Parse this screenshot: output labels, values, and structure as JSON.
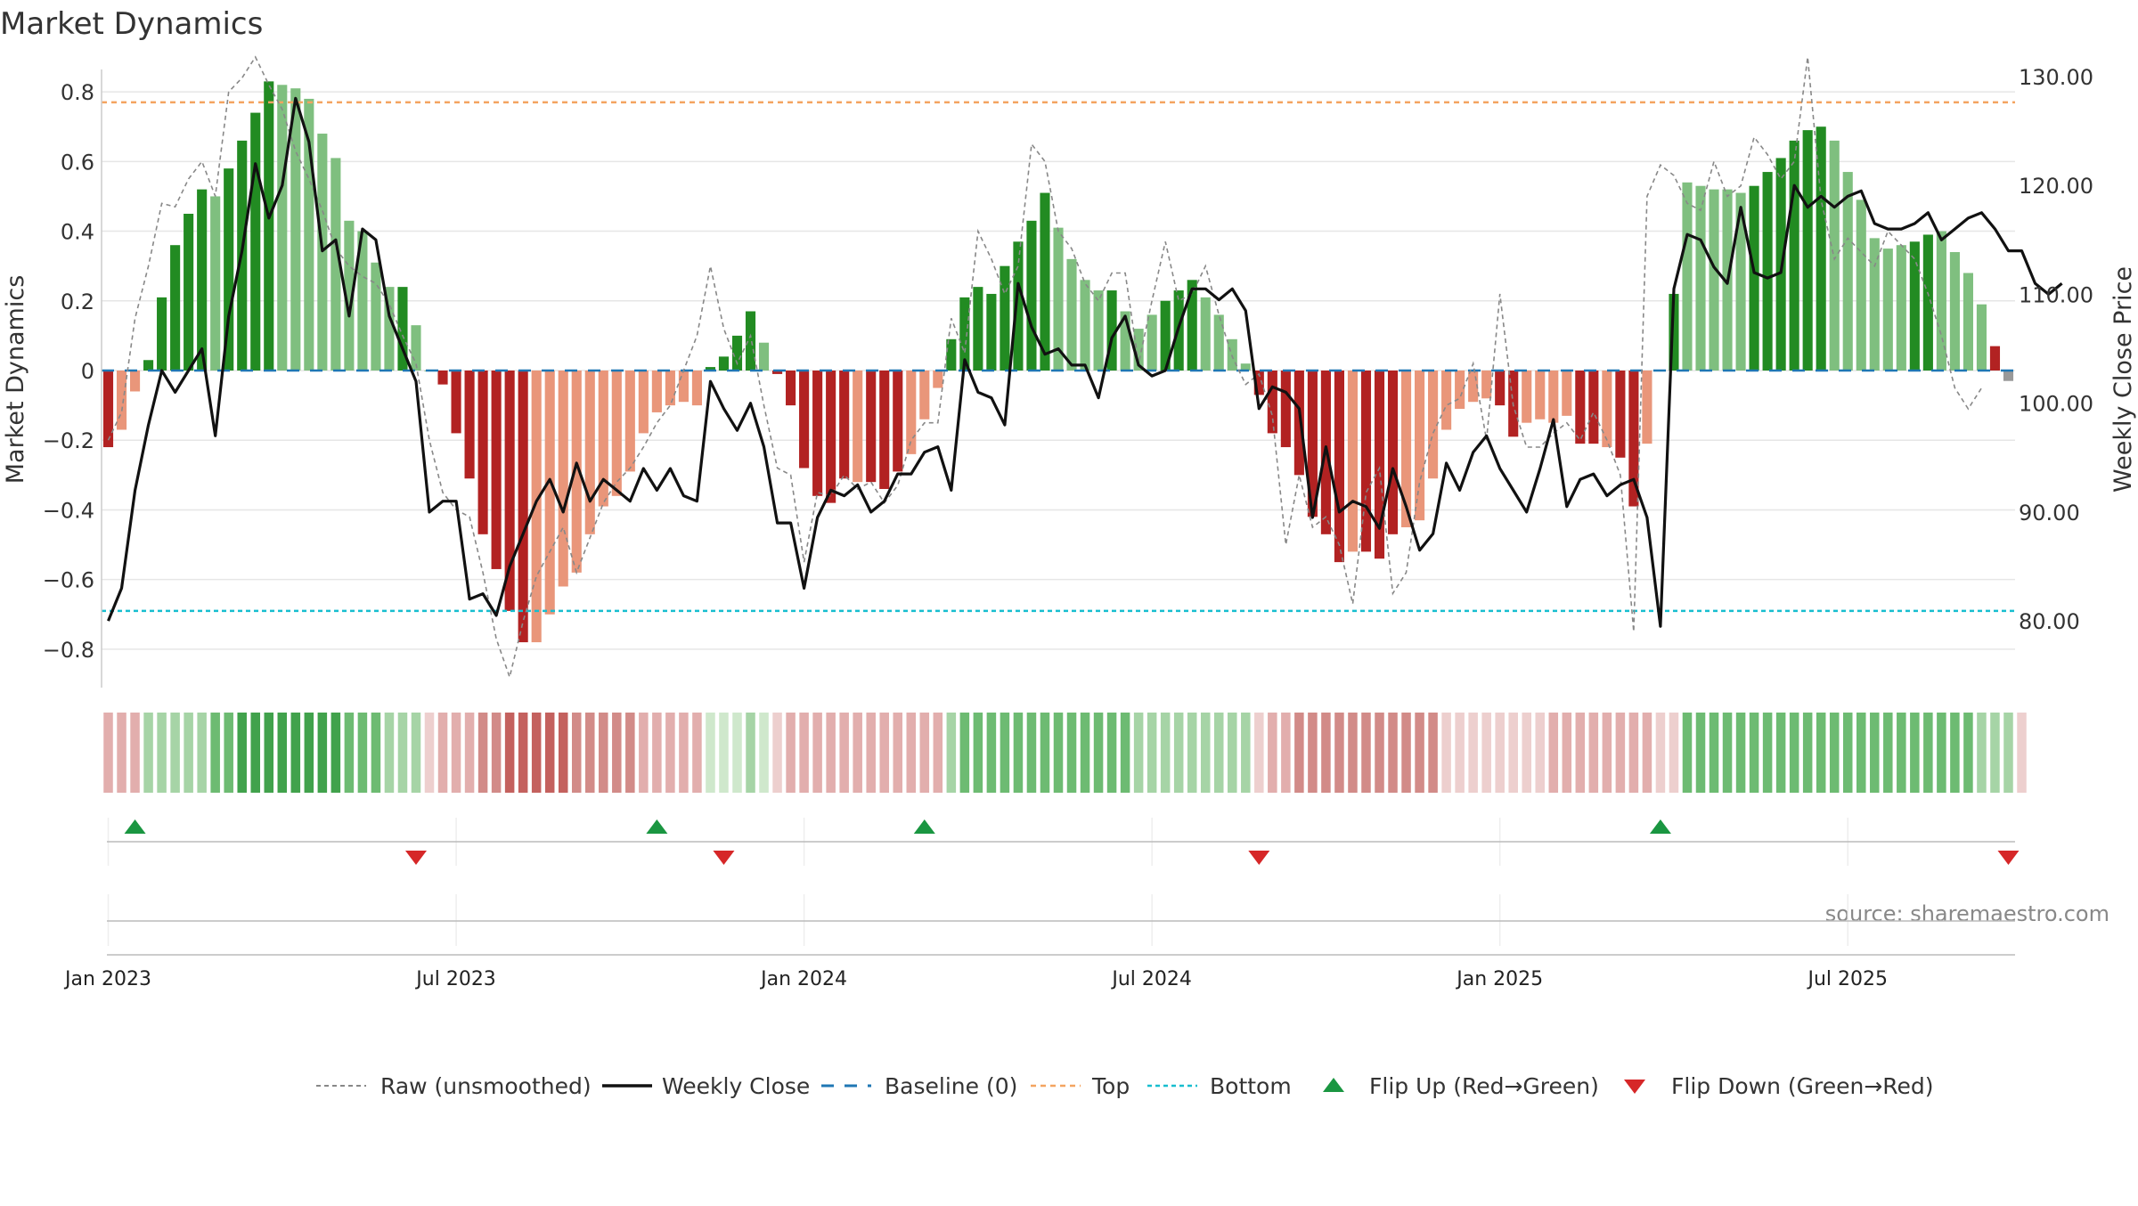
{
  "chart_data": {
    "type": "bar",
    "title": "Market Dynamics",
    "ylabel": "Market Dynamics",
    "y2label": "Weekly Close Price",
    "ylim": [
      -0.9,
      0.9
    ],
    "y2lim": [
      74.2,
      131.8
    ],
    "y_ticks": [
      "0.8",
      "0.6",
      "0.4",
      "0.2",
      "0",
      "−0.2",
      "−0.4",
      "−0.6",
      "−0.8"
    ],
    "y_tick_values": [
      0.8,
      0.6,
      0.4,
      0.2,
      0,
      -0.2,
      -0.4,
      -0.6,
      -0.8
    ],
    "y2_ticks": [
      "130.00",
      "120.00",
      "110.00",
      "100.00",
      "90.00",
      "80.00"
    ],
    "y2_tick_values": [
      130,
      120,
      110,
      100,
      90,
      80
    ],
    "x_ticks": [
      "Jan 2023",
      "Jul 2023",
      "Jan 2024",
      "Jul 2024",
      "Jan 2025",
      "Jul 2025"
    ],
    "x_tick_values": [
      0.5,
      26.5,
      52.5,
      78.5,
      104.5,
      130.5
    ],
    "grid": true,
    "legend_position": "bottom",
    "top_threshold": 0.77,
    "bottom_threshold": -0.69,
    "baseline": 0,
    "colors": {
      "strong_up": "#228B22",
      "weak_up": "#7FBF7F",
      "strong_down": "#B22222",
      "weak_down": "#E9967A",
      "raw": "#888888",
      "close": "#111111",
      "baseline": "#1F77B4",
      "top": "#F4A460",
      "bottom": "#17BECF",
      "flip_up": "#1A9641",
      "flip_down": "#D62728"
    },
    "series": [
      {
        "name": "Market Dynamics",
        "values": [
          -0.22,
          -0.17,
          -0.06,
          0.03,
          0.21,
          0.36,
          0.45,
          0.52,
          0.5,
          0.58,
          0.66,
          0.74,
          0.83,
          0.82,
          0.81,
          0.78,
          0.68,
          0.61,
          0.43,
          0.4,
          0.31,
          0.24,
          0.24,
          0.13,
          0,
          -0.04,
          -0.18,
          -0.31,
          -0.47,
          -0.57,
          -0.69,
          -0.78,
          -0.78,
          -0.7,
          -0.62,
          -0.58,
          -0.47,
          -0.39,
          -0.36,
          -0.29,
          -0.18,
          -0.12,
          -0.1,
          -0.09,
          -0.1,
          0.01,
          0.04,
          0.1,
          0.17,
          0.08,
          -0.01,
          -0.1,
          -0.28,
          -0.36,
          -0.38,
          -0.31,
          -0.32,
          -0.32,
          -0.34,
          -0.29,
          -0.24,
          -0.14,
          -0.05,
          0.09,
          0.21,
          0.24,
          0.22,
          0.3,
          0.37,
          0.43,
          0.51,
          0.41,
          0.32,
          0.26,
          0.23,
          0.23,
          0.17,
          0.12,
          0.16,
          0.2,
          0.23,
          0.26,
          0.21,
          0.16,
          0.09,
          0.02,
          -0.07,
          -0.18,
          -0.22,
          -0.3,
          -0.42,
          -0.47,
          -0.55,
          -0.52,
          -0.52,
          -0.54,
          -0.47,
          -0.45,
          -0.43,
          -0.31,
          -0.17,
          -0.11,
          -0.09,
          -0.08,
          -0.1,
          -0.19,
          -0.15,
          -0.14,
          -0.15,
          -0.13,
          -0.21,
          -0.21,
          -0.22,
          -0.25,
          -0.39,
          -0.21,
          0,
          0.22,
          0.54,
          0.53,
          0.52,
          0.52,
          0.51,
          0.53,
          0.57,
          0.61,
          0.66,
          0.69,
          0.7,
          0.66,
          0.57,
          0.49,
          0.38,
          0.35,
          0.36,
          0.37,
          0.39,
          0.4,
          0.34,
          0.28,
          0.19,
          0.07,
          -0.03
        ],
        "tones": [
          "sd",
          "wd",
          "wd",
          "su",
          "su",
          "su",
          "su",
          "su",
          "wu",
          "su",
          "su",
          "su",
          "su",
          "wu",
          "wu",
          "wu",
          "wu",
          "wu",
          "wu",
          "wu",
          "wu",
          "wu",
          "su",
          "wu",
          "su",
          "sd",
          "sd",
          "sd",
          "sd",
          "sd",
          "sd",
          "sd",
          "wd",
          "wd",
          "wd",
          "wd",
          "wd",
          "wd",
          "wd",
          "wd",
          "wd",
          "wd",
          "wd",
          "wd",
          "wd",
          "su",
          "su",
          "su",
          "su",
          "wu",
          "sd",
          "sd",
          "sd",
          "sd",
          "sd",
          "sd",
          "wd",
          "sd",
          "sd",
          "sd",
          "wd",
          "wd",
          "wd",
          "su",
          "su",
          "su",
          "su",
          "su",
          "su",
          "su",
          "su",
          "wu",
          "wu",
          "wu",
          "wu",
          "su",
          "wu",
          "wu",
          "wu",
          "su",
          "su",
          "su",
          "wu",
          "wu",
          "wu",
          "wu",
          "sd",
          "sd",
          "sd",
          "sd",
          "sd",
          "sd",
          "sd",
          "wd",
          "sd",
          "sd",
          "sd",
          "wd",
          "wd",
          "wd",
          "wd",
          "wd",
          "wd",
          "wd",
          "sd",
          "sd",
          "wd",
          "wd",
          "wd",
          "wd",
          "sd",
          "sd",
          "wd",
          "sd",
          "sd",
          "wd",
          "su",
          "su",
          "wu",
          "wu",
          "wu",
          "wu",
          "wu",
          "su",
          "su",
          "su",
          "su",
          "su",
          "su",
          "wu",
          "wu",
          "wu",
          "wu",
          "wu",
          "wu",
          "su",
          "su",
          "wu",
          "wu",
          "wu",
          "wu",
          "sd"
        ]
      },
      {
        "name": "Raw (unsmoothed)",
        "values": [
          -0.2,
          -0.12,
          0.15,
          0.3,
          0.48,
          0.47,
          0.55,
          0.6,
          0.5,
          0.8,
          0.84,
          0.9,
          0.82,
          0.75,
          0.63,
          0.55,
          0.46,
          0.35,
          0.3,
          0.27,
          0.25,
          0.19,
          0.1,
          0.02,
          -0.2,
          -0.35,
          -0.4,
          -0.42,
          -0.58,
          -0.77,
          -0.88,
          -0.72,
          -0.59,
          -0.52,
          -0.45,
          -0.58,
          -0.48,
          -0.38,
          -0.32,
          -0.28,
          -0.22,
          -0.15,
          -0.1,
          0.0,
          0.1,
          0.3,
          0.12,
          0.02,
          0.1,
          -0.1,
          -0.28,
          -0.3,
          -0.55,
          -0.35,
          -0.36,
          -0.3,
          -0.34,
          -0.32,
          -0.38,
          -0.33,
          -0.2,
          -0.15,
          -0.15,
          0.15,
          0.05,
          0.4,
          0.32,
          0.22,
          0.3,
          0.65,
          0.6,
          0.4,
          0.35,
          0.25,
          0.2,
          0.28,
          0.28,
          0.02,
          0.2,
          0.37,
          0.2,
          0.22,
          0.3,
          0.16,
          0.04,
          -0.04,
          -0.01,
          -0.13,
          -0.5,
          -0.3,
          -0.45,
          -0.42,
          -0.5,
          -0.67,
          -0.35,
          -0.28,
          -0.64,
          -0.58,
          -0.32,
          -0.18,
          -0.1,
          -0.08,
          0.02,
          -0.2,
          0.22,
          -0.1,
          -0.22,
          -0.22,
          -0.18,
          -0.15,
          -0.2,
          -0.12,
          -0.2,
          -0.3,
          -0.75,
          0.5,
          0.59,
          0.56,
          0.48,
          0.46,
          0.6,
          0.5,
          0.53,
          0.67,
          0.62,
          0.55,
          0.6,
          0.9,
          0.49,
          0.32,
          0.38,
          0.34,
          0.3,
          0.4,
          0.36,
          0.32,
          0.22,
          0.1,
          -0.05,
          -0.11,
          -0.05
        ]
      },
      {
        "name": "Weekly Close",
        "values": [
          80,
          83,
          92,
          98,
          103,
          101,
          103,
          105,
          97,
          108,
          114,
          122,
          117,
          120,
          128,
          124,
          114,
          115,
          108,
          116,
          115,
          108,
          105,
          102,
          90,
          91,
          91,
          82,
          82.5,
          80.5,
          85,
          88,
          91,
          93,
          90,
          94.5,
          91,
          93,
          92,
          91,
          94,
          92,
          94,
          91.5,
          91,
          102,
          99.5,
          97.5,
          100,
          96,
          89,
          89,
          83,
          89.5,
          92,
          91.5,
          92.5,
          90,
          91,
          93.5,
          93.5,
          95.5,
          96,
          92,
          104,
          101,
          100.5,
          98,
          111,
          107,
          104.5,
          105,
          103.5,
          103.5,
          100.5,
          106,
          108,
          103.5,
          102.5,
          103,
          107,
          110.5,
          110.5,
          109.5,
          110.5,
          108.5,
          99.5,
          101.5,
          101,
          99.5,
          89.5,
          96,
          90,
          91,
          90.5,
          88.5,
          94,
          90.5,
          86.5,
          88,
          94.5,
          92,
          95.5,
          97,
          94,
          92,
          90,
          94,
          98.5,
          90.5,
          93,
          93.5,
          91.5,
          92.5,
          93,
          89.5,
          79.5,
          110.5,
          115.5,
          115,
          112.5,
          111,
          118,
          112,
          111.5,
          112,
          120,
          118,
          119,
          118,
          119,
          119.5,
          116.5,
          116,
          116,
          116.5,
          117.5,
          115,
          116,
          117,
          117.5,
          116,
          114,
          114,
          111,
          110,
          111
        ]
      }
    ],
    "regime_strip": [
      "wd",
      "wd",
      "wd",
      "wu",
      "wu",
      "wu",
      "wu",
      "wu",
      "mu",
      "mu",
      "su",
      "su",
      "su",
      "su",
      "su",
      "su",
      "su",
      "su",
      "mu",
      "mu",
      "mu",
      "wu",
      "wu",
      "wu",
      "xd",
      "wd",
      "wd",
      "wd",
      "md",
      "md",
      "sd",
      "sd",
      "sd",
      "sd",
      "sd",
      "md",
      "md",
      "md",
      "md",
      "md",
      "wd",
      "wd",
      "wd",
      "wd",
      "wd",
      "xu",
      "xu",
      "xu",
      "wu",
      "xu",
      "xd",
      "wd",
      "wd",
      "wd",
      "wd",
      "wd",
      "wd",
      "wd",
      "wd",
      "wd",
      "wd",
      "wd",
      "wd",
      "wu",
      "mu",
      "mu",
      "mu",
      "mu",
      "mu",
      "mu",
      "mu",
      "mu",
      "mu",
      "mu",
      "mu",
      "mu",
      "mu",
      "wu",
      "wu",
      "wu",
      "wu",
      "wu",
      "wu",
      "wu",
      "wu",
      "wu",
      "xd",
      "wd",
      "wd",
      "md",
      "md",
      "md",
      "md",
      "md",
      "md",
      "md",
      "md",
      "md",
      "md",
      "md",
      "xd",
      "xd",
      "xd",
      "xd",
      "xd",
      "xd",
      "xd",
      "xd",
      "wd",
      "wd",
      "wd",
      "wd",
      "wd",
      "wd",
      "wd",
      "wd",
      "xd",
      "xd",
      "mu",
      "mu",
      "mu",
      "mu",
      "mu",
      "mu",
      "mu",
      "mu",
      "mu",
      "mu",
      "mu",
      "mu",
      "mu",
      "mu",
      "mu",
      "mu",
      "mu",
      "mu",
      "mu",
      "mu",
      "mu",
      "mu",
      "wu",
      "wu",
      "wu",
      "xd"
    ],
    "flips_up": [
      2.5,
      41.5,
      61.5,
      116.5
    ],
    "flips_down": [
      23.5,
      46.5,
      86.5,
      142.5
    ],
    "legend": [
      {
        "label": "Raw (unsmoothed)",
        "style": "raw"
      },
      {
        "label": "Weekly Close",
        "style": "close"
      },
      {
        "label": "Baseline (0)",
        "style": "baseline"
      },
      {
        "label": "Top",
        "style": "top"
      },
      {
        "label": "Bottom",
        "style": "bottom"
      },
      {
        "label": "Flip Up (Red→Green)",
        "style": "flip_up"
      },
      {
        "label": "Flip Down (Green→Red)",
        "style": "flip_down"
      }
    ],
    "source": "source: sharemaestro.com"
  }
}
